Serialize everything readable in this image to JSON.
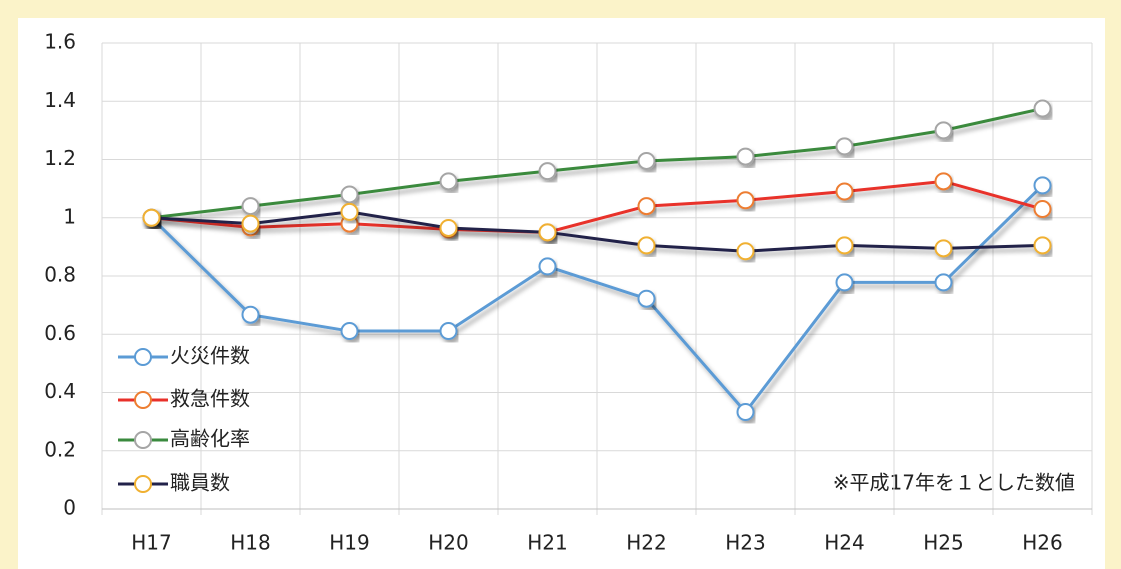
{
  "chart_data": {
    "type": "line",
    "categories": [
      "H17",
      "H18",
      "H19",
      "H20",
      "H21",
      "H22",
      "H23",
      "H24",
      "H25",
      "H26"
    ],
    "series": [
      {
        "name": "火災件数",
        "color": "#5b9bd5",
        "marker_color": "#5b9bd5",
        "values": [
          1,
          0.667,
          0.611,
          0.611,
          0.833,
          0.722,
          0.333,
          0.778,
          0.778,
          1.111
        ]
      },
      {
        "name": "救急件数",
        "color": "#e8302a",
        "marker_color": "#ed7d31",
        "values": [
          1,
          0.967,
          0.98,
          0.96,
          0.95,
          1.04,
          1.06,
          1.09,
          1.125,
          1.03
        ]
      },
      {
        "name": "高齢化率",
        "color": "#3a8a3e",
        "marker_color": "#a5a5a5",
        "values": [
          1,
          1.04,
          1.08,
          1.125,
          1.16,
          1.195,
          1.21,
          1.245,
          1.3,
          1.375
        ]
      },
      {
        "name": "職員数",
        "color": "#22224a",
        "marker_color": "#f0b030",
        "values": [
          1,
          0.98,
          1.02,
          0.965,
          0.95,
          0.905,
          0.885,
          0.905,
          0.895,
          0.905
        ]
      }
    ],
    "ylim": [
      0,
      1.6
    ],
    "yticks": [
      0,
      0.2,
      0.4,
      0.6,
      0.8,
      1,
      1.2,
      1.4,
      1.6
    ],
    "grid": true,
    "legend": "lower left",
    "annotation": "※平成17年を１とした数値"
  }
}
